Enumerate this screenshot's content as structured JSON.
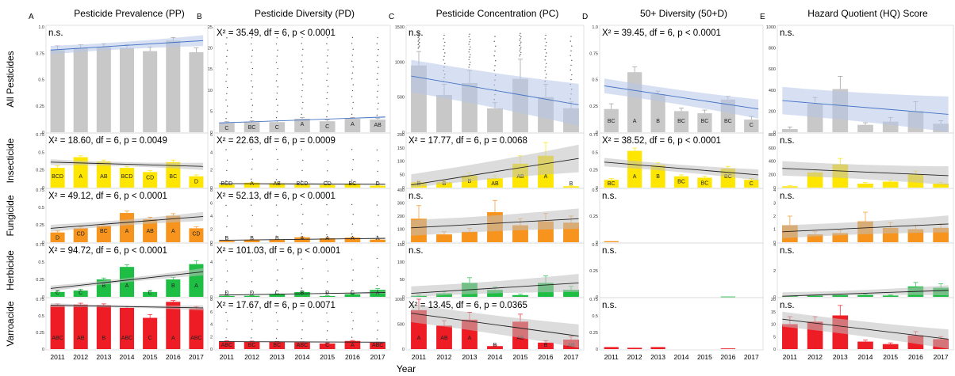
{
  "columns": [
    {
      "letter": "A",
      "title": "Pesticide Prevalence (PP)"
    },
    {
      "letter": "B",
      "title": "Pesticide Diversity  (PD)"
    },
    {
      "letter": "C",
      "title": "Pesticide Concentration (PC)"
    },
    {
      "letter": "D",
      "title": "50+ Diversity (50+D)"
    },
    {
      "letter": "E",
      "title": "Hazard Quotient (HQ) Score"
    }
  ],
  "rows": [
    "All Pesticides",
    "Insecticide",
    "Fungicide",
    "Herbicide",
    "Varroacide"
  ],
  "x_axis": {
    "label": "Year",
    "ticks": [
      "2011",
      "2012",
      "2013",
      "2014",
      "2015",
      "2016",
      "2017"
    ]
  },
  "colors": {
    "All Pesticides": "#c8c8c8",
    "Insecticide": "#ffe600",
    "Fungicide": "#f7941d",
    "Herbicide": "#1ebe45",
    "Varroacide": "#ee1c25",
    "band_all": "#b4c6e7",
    "line_all": "#4472c4",
    "band_other": "#c0c0c0",
    "line_other": "#222222"
  },
  "chart_data": [
    {
      "panel": "All Pesticides / PP",
      "type": "bar",
      "stat": "n.s.",
      "ylim": [
        0,
        1
      ],
      "yticks": [
        "0",
        "0.25",
        "0.5",
        "0.75",
        "1.0"
      ],
      "values": [
        0.78,
        0.8,
        0.81,
        0.8,
        0.77,
        0.87,
        0.76
      ],
      "errors": [
        0.04,
        0.03,
        0.03,
        0.03,
        0.04,
        0.03,
        0.04
      ],
      "groups": [],
      "trend": [
        0.78,
        0.87
      ],
      "band": 0.04,
      "band_color": "blue"
    },
    {
      "panel": "All Pesticides / PD",
      "type": "bar",
      "stat": "X² = 35.49, df = 6, p < 0.0001",
      "ylim": [
        0,
        25
      ],
      "yticks": [
        "0",
        "5",
        "10",
        "15",
        "20",
        "25"
      ],
      "values": [
        2.2,
        2.4,
        2.4,
        3.2,
        2.6,
        3.2,
        3.0
      ],
      "errors": [
        0.3,
        0.3,
        0.3,
        0.3,
        0.3,
        0.3,
        0.3
      ],
      "groups": [
        "C",
        "BC",
        "C",
        "A",
        "C",
        "A",
        "AB"
      ],
      "trend": [
        2.2,
        3.6
      ],
      "band": 0.2,
      "band_color": "blue",
      "dots": true
    },
    {
      "panel": "All Pesticides / PC",
      "type": "bar",
      "stat": "n.s.",
      "ylim": [
        0,
        1500
      ],
      "yticks": [
        "0",
        "500",
        "1000",
        "1500"
      ],
      "values": [
        950,
        530,
        700,
        340,
        760,
        500,
        340
      ],
      "errors": [
        200,
        150,
        180,
        80,
        280,
        180,
        90
      ],
      "groups": [],
      "trend": [
        800,
        390
      ],
      "band": 230,
      "band_color": "blue",
      "dots": true
    },
    {
      "panel": "All Pesticides / 50+D",
      "type": "bar",
      "stat": "X² = 39.45, df = 6, p < 0.0001",
      "ylim": [
        0,
        1
      ],
      "yticks": [
        "0",
        "0.25",
        "0.5",
        "0.75",
        "1.0"
      ],
      "values": [
        0.22,
        0.57,
        0.36,
        0.2,
        0.18,
        0.31,
        0.12
      ],
      "errors": [
        0.05,
        0.05,
        0.03,
        0.03,
        0.03,
        0.03,
        0.03
      ],
      "groups": [
        "BC",
        "A",
        "B",
        "BC",
        "BC",
        "BC",
        "C"
      ],
      "trend": [
        0.44,
        0.22
      ],
      "band": 0.07,
      "band_color": "blue"
    },
    {
      "panel": "All Pesticides / HQ",
      "type": "bar",
      "stat": "n.s.",
      "ylim": [
        0,
        1000
      ],
      "yticks": [
        "0",
        "200",
        "400",
        "600",
        "800",
        "1000"
      ],
      "values": [
        30,
        270,
        410,
        70,
        100,
        200,
        80
      ],
      "errors": [
        20,
        60,
        120,
        20,
        40,
        90,
        30
      ],
      "groups": [],
      "trend": [
        300,
        170
      ],
      "band": 130,
      "band_color": "blue"
    },
    {
      "panel": "Insecticide / PP",
      "type": "bar",
      "stat": "X² = 18.60, df = 6, p = 0.0049",
      "ylim": [
        0,
        0.75
      ],
      "yticks": [
        "0",
        "0.25",
        "0.5",
        "0.75"
      ],
      "values": [
        0.28,
        0.43,
        0.37,
        0.28,
        0.22,
        0.36,
        0.16
      ],
      "errors": [
        0.03,
        0.02,
        0.02,
        0.02,
        0.02,
        0.03,
        0.02
      ],
      "groups": [
        "BCD",
        "A",
        "AB",
        "BCD",
        "CD",
        "BC",
        "D"
      ],
      "trend": [
        0.36,
        0.3
      ],
      "band": 0.04,
      "band_color": "grey"
    },
    {
      "panel": "Insecticide / PD",
      "type": "bar",
      "stat": "X² = 22.63, df = 6, p = 0.0009",
      "ylim": [
        0,
        6
      ],
      "yticks": [
        "0",
        "2",
        "4",
        "6"
      ],
      "values": [
        0.35,
        0.55,
        0.5,
        0.35,
        0.3,
        0.45,
        0.22
      ],
      "errors": [
        0.05,
        0.05,
        0.05,
        0.05,
        0.05,
        0.05,
        0.05
      ],
      "groups": [
        "BCD",
        "A",
        "AB",
        "BCD",
        "CD",
        "BC",
        "D"
      ],
      "trend": [
        0.45,
        0.38
      ],
      "band": 0.05,
      "band_color": "grey",
      "dots": true
    },
    {
      "panel": "Insecticide / PC",
      "type": "bar",
      "stat": "X² = 17.77, df = 6, p = 0.0068",
      "ylim": [
        0,
        200
      ],
      "yticks": [
        "0",
        "50",
        "100",
        "150",
        "200"
      ],
      "values": [
        20,
        20,
        45,
        35,
        90,
        120,
        5
      ],
      "errors": [
        5,
        5,
        10,
        10,
        30,
        50,
        3
      ],
      "groups": [
        "B",
        "B",
        "B",
        "AB",
        "AB",
        "A",
        "B"
      ],
      "trend": [
        10,
        110
      ],
      "band": 40,
      "band_color": "grey"
    },
    {
      "panel": "Insecticide / 50+D",
      "type": "bar",
      "stat": "X² = 38.52, df = 6, p < 0.0001",
      "ylim": [
        0,
        0.75
      ],
      "yticks": [
        "0",
        "0.25",
        "0.5",
        "0.75"
      ],
      "values": [
        0.11,
        0.52,
        0.32,
        0.16,
        0.14,
        0.27,
        0.11
      ],
      "errors": [
        0.02,
        0.04,
        0.03,
        0.02,
        0.02,
        0.03,
        0.02
      ],
      "groups": [
        "BC",
        "A",
        "B",
        "BC",
        "BC",
        "BC",
        "C"
      ],
      "trend": [
        0.36,
        0.18
      ],
      "band": 0.06,
      "band_color": "grey"
    },
    {
      "panel": "Insecticide / HQ",
      "type": "bar",
      "stat": "n.s.",
      "ylim": [
        0,
        800
      ],
      "yticks": [
        "0",
        "200",
        "400",
        "600",
        "800"
      ],
      "values": [
        20,
        230,
        350,
        60,
        90,
        200,
        60
      ],
      "errors": [
        10,
        40,
        90,
        15,
        25,
        50,
        20
      ],
      "groups": [],
      "trend": [
        290,
        180
      ],
      "band": 110,
      "band_color": "grey"
    },
    {
      "panel": "Fungicide / PP",
      "type": "bar",
      "stat": "X² = 49.12, df = 6, p < 0.0001",
      "ylim": [
        0,
        0.75
      ],
      "yticks": [
        "0",
        "0.25",
        "0.5",
        "0.75"
      ],
      "values": [
        0.14,
        0.2,
        0.24,
        0.42,
        0.33,
        0.38,
        0.2
      ],
      "errors": [
        0.02,
        0.02,
        0.02,
        0.03,
        0.03,
        0.03,
        0.02
      ],
      "groups": [
        "D",
        "CD",
        "BC",
        "A",
        "AB",
        "A",
        "CD"
      ],
      "trend": [
        0.2,
        0.37
      ],
      "band": 0.05,
      "band_color": "grey"
    },
    {
      "panel": "Fungicide / PD",
      "type": "bar",
      "stat": "X² = 52.13, df = 6, p < 0.0001",
      "ylim": [
        0,
        8
      ],
      "yticks": [
        "0",
        "2",
        "4",
        "6",
        "8"
      ],
      "values": [
        0.2,
        0.35,
        0.4,
        0.75,
        0.6,
        0.7,
        0.4
      ],
      "errors": [
        0.05,
        0.05,
        0.05,
        0.08,
        0.06,
        0.07,
        0.05
      ],
      "groups": [
        "B",
        "B",
        "B",
        "A",
        "A",
        "A",
        "A"
      ],
      "trend": [
        0.3,
        0.6
      ],
      "band": 0.1,
      "band_color": "grey",
      "dots": true
    },
    {
      "panel": "Fungicide / PC",
      "type": "bar",
      "stat": "n.s.",
      "ylim": [
        0,
        400
      ],
      "yticks": [
        "0",
        "100",
        "200",
        "300",
        "400"
      ],
      "values": [
        180,
        60,
        80,
        230,
        130,
        160,
        150
      ],
      "errors": [
        100,
        20,
        25,
        90,
        50,
        60,
        50
      ],
      "groups": [],
      "trend": [
        110,
        180
      ],
      "band": 60,
      "band_color": "grey"
    },
    {
      "panel": "Fungicide / 50+D",
      "type": "bar",
      "stat": "n.s.",
      "ylim": [
        0,
        0.5
      ],
      "yticks": [
        "0",
        "0.25",
        "0.5"
      ],
      "values": [
        0.01,
        0,
        0,
        0,
        0,
        0,
        0
      ],
      "errors": [
        0,
        0,
        0,
        0,
        0,
        0,
        0
      ],
      "groups": [],
      "trend": [],
      "band": 0,
      "band_color": "grey"
    },
    {
      "panel": "Fungicide / HQ",
      "type": "bar",
      "stat": "n.s.",
      "ylim": [
        0,
        4
      ],
      "yticks": [
        "0",
        "1",
        "2",
        "3",
        "4"
      ],
      "values": [
        1.3,
        0.6,
        0.7,
        1.6,
        1.1,
        1.0,
        1.1
      ],
      "errors": [
        0.7,
        0.2,
        0.2,
        0.7,
        0.4,
        0.3,
        0.3
      ],
      "groups": [],
      "trend": [
        0.8,
        1.4
      ],
      "band": 0.5,
      "band_color": "grey"
    },
    {
      "panel": "Herbicide / PP",
      "type": "bar",
      "stat": "X² = 94.72, df = 6, p < 0.0001",
      "ylim": [
        0,
        0.75
      ],
      "yticks": [
        "0",
        "0.25",
        "0.5",
        "0.75"
      ],
      "values": [
        0.07,
        0.09,
        0.25,
        0.43,
        0.07,
        0.25,
        0.47
      ],
      "errors": [
        0.02,
        0.02,
        0.02,
        0.03,
        0.02,
        0.03,
        0.05
      ],
      "groups": [
        "C",
        "C",
        "B",
        "A",
        "C",
        "B",
        "A"
      ],
      "trend": [
        0.12,
        0.36
      ],
      "band": 0.04,
      "band_color": "grey"
    },
    {
      "panel": "Herbicide / PD",
      "type": "bar",
      "stat": "X² = 101.03, df = 6, p < 0.0001",
      "ylim": [
        0,
        6
      ],
      "yticks": [
        "0",
        "2",
        "4",
        "6"
      ],
      "values": [
        0.1,
        0.12,
        0.3,
        0.55,
        0.1,
        0.3,
        0.8
      ],
      "errors": [
        0.03,
        0.03,
        0.05,
        0.08,
        0.03,
        0.05,
        0.15
      ],
      "groups": [
        "D",
        "D",
        "C",
        "B",
        "D",
        "C",
        "A"
      ],
      "trend": [
        0.2,
        0.5
      ],
      "band": 0.1,
      "band_color": "grey",
      "dots": true
    },
    {
      "panel": "Herbicide / PC",
      "type": "bar",
      "stat": "n.s.",
      "ylim": [
        0,
        150
      ],
      "yticks": [
        "0",
        "50",
        "100",
        "150"
      ],
      "values": [
        3,
        10,
        40,
        20,
        5,
        40,
        20
      ],
      "errors": [
        2,
        5,
        15,
        8,
        3,
        20,
        10
      ],
      "groups": [],
      "trend": [
        10,
        40
      ],
      "band": 20,
      "band_color": "grey"
    },
    {
      "panel": "Herbicide / 50+D",
      "type": "bar",
      "stat": "n.s.",
      "ylim": [
        0,
        0.5
      ],
      "yticks": [
        "0",
        "0.25",
        "0.5"
      ],
      "values": [
        0,
        0,
        0,
        0,
        0,
        0.003,
        0
      ],
      "errors": [
        0,
        0,
        0,
        0,
        0,
        0,
        0
      ],
      "groups": [],
      "trend": [],
      "band": 0,
      "band_color": "grey"
    },
    {
      "panel": "Herbicide / HQ",
      "type": "bar",
      "stat": "n.s.",
      "ylim": [
        0,
        4
      ],
      "yticks": [
        "0",
        "2",
        "4"
      ],
      "values": [
        0.05,
        0.1,
        0.15,
        0.15,
        0.1,
        0.8,
        0.7
      ],
      "errors": [
        0.02,
        0.03,
        0.05,
        0.05,
        0.03,
        0.3,
        0.3
      ],
      "groups": [],
      "trend": [
        0.05,
        0.5
      ],
      "band": 0.3,
      "band_color": "grey"
    },
    {
      "panel": "Varroacide / PP",
      "type": "bar",
      "stat": "",
      "ylim": [
        0,
        0.75
      ],
      "yticks": [
        "0",
        "0.25",
        "0.5",
        "0.75"
      ],
      "values": [
        0.66,
        0.67,
        0.66,
        0.62,
        0.47,
        0.71,
        0.61
      ],
      "errors": [
        0.02,
        0.02,
        0.02,
        0.02,
        0.05,
        0.02,
        0.03
      ],
      "groups": [
        "ABC",
        "AB",
        "B",
        "ABC",
        "C",
        "A",
        "ABC"
      ],
      "trend": [
        0.66,
        0.62
      ],
      "band": 0.03,
      "band_color": "grey"
    },
    {
      "panel": "Varroacide / PD",
      "type": "bar",
      "stat": "X² = 17.67, df = 6, p = 0.0071",
      "ylim": [
        0,
        8
      ],
      "yticks": [
        "0",
        "2",
        "4",
        "6",
        "8"
      ],
      "values": [
        1.25,
        1.2,
        1.15,
        1.1,
        0.9,
        1.3,
        1.05
      ],
      "errors": [
        0.08,
        0.08,
        0.08,
        0.08,
        0.1,
        0.08,
        0.08
      ],
      "groups": [
        "ABC",
        "BC",
        "BC",
        "ABC",
        "C",
        "A",
        "ABC"
      ],
      "trend": [
        1.2,
        1.1
      ],
      "band": 0.08,
      "band_color": "grey",
      "dots": true
    },
    {
      "panel": "Varroacide / PC",
      "type": "bar",
      "stat": "X² = 13.45, df = 6, p = 0.0365",
      "ylim": [
        0,
        1000
      ],
      "yticks": [
        "0",
        "500",
        "1000"
      ],
      "values": [
        780,
        470,
        590,
        60,
        550,
        130,
        190
      ],
      "errors": [
        220,
        100,
        150,
        20,
        150,
        40,
        60
      ],
      "groups": [
        "A",
        "AB",
        "A",
        "B",
        "AB",
        "B",
        "AB"
      ],
      "trend": [
        720,
        260
      ],
      "band": 180,
      "band_color": "grey"
    },
    {
      "panel": "Varroacide / 50+D",
      "type": "bar",
      "stat": "n.s.",
      "ylim": [
        0,
        0.75
      ],
      "yticks": [
        "0",
        "0.25",
        "0.5",
        "0.75"
      ],
      "values": [
        0.03,
        0.02,
        0.03,
        0,
        0,
        0.01,
        0
      ],
      "errors": [
        0,
        0,
        0,
        0,
        0,
        0,
        0
      ],
      "groups": [],
      "trend": [],
      "band": 0,
      "band_color": "grey"
    },
    {
      "panel": "Varroacide / HQ",
      "type": "bar",
      "stat": "n.s.",
      "ylim": [
        0,
        20
      ],
      "yticks": [
        "0",
        "5",
        "10",
        "15",
        "20"
      ],
      "values": [
        10,
        11,
        13.5,
        3,
        2,
        5.5,
        4
      ],
      "errors": [
        3,
        2,
        4,
        0.6,
        0.5,
        1.5,
        1
      ],
      "groups": [],
      "trend": [
        12,
        4
      ],
      "band": 3,
      "band_color": "grey"
    }
  ]
}
